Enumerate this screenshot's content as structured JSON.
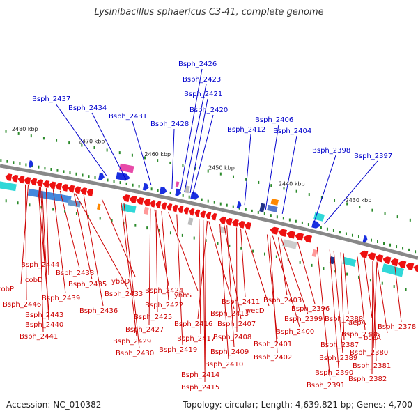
{
  "page": {
    "title": "Lysinibacillus sphaericus C3-41, complete genome",
    "accession": "Accession: NC_010382",
    "topology": "Topology: circular; Length: 4,639,821 bp; Genes: 4,700"
  },
  "colors": {
    "forward_label": "#0000cc",
    "reverse_label": "#cc0000",
    "backbone": "#888888",
    "tick_mark": "#2a8a2a",
    "forward_gene": "#1a2fe0",
    "reverse_gene": "#ee1111",
    "rna_cyan": "#30d8d8",
    "rna_magenta": "#e84aa8"
  },
  "ticks": [
    "2480 kbp",
    "2470 kbp",
    "2460 kbp",
    "2450 kbp",
    "2440 kbp",
    "2430 kbp"
  ],
  "forward_labels": [
    "Bsph_2426",
    "Bsph_2423",
    "Bsph_2421",
    "Bsph_2420",
    "Bsph_2437",
    "Bsph_2434",
    "Bsph_2431",
    "Bsph_2428",
    "Bsph_2406",
    "Bsph_2412",
    "Bsph_2404",
    "Bsph_2398",
    "Bsph_2397"
  ],
  "reverse_labels": [
    "Bsph_2444",
    "Bsph_2438",
    "cobD",
    "Bsph_2435",
    "ybbD",
    "cobP",
    "Bsph_2433",
    "Bsph_2424",
    "Bsph_2446",
    "Bsph_2439",
    "yhhS",
    "Bsph_2411",
    "Bsph_2403",
    "Bsph_2422",
    "wecD",
    "Bsph_2443",
    "Bsph_2436",
    "Bsph_2413",
    "Bsph_2396",
    "Bsph_2425",
    "Bsph_2399",
    "Bsph_2388",
    "aepA",
    "Bsph_2440",
    "Bsph_2416",
    "Bsph_2407",
    "Bsph_2378",
    "Bsph_2427",
    "Bsph_2400",
    "Bsph_2386",
    "Bsph_2441",
    "Bsph_2417",
    "Bsph_2408",
    "bceA",
    "Bsph_2429",
    "Bsph_2401",
    "Bsph_2387",
    "Bsph_2419",
    "Bsph_2409",
    "Bsph_2380",
    "Bsph_2430",
    "Bsph_2402",
    "Bsph_2389",
    "Bsph_2410",
    "Bsph_2381",
    "Bsph_2390",
    "Bsph_2414",
    "Bsph_2382",
    "Bsph_2415",
    "Bsph_2391"
  ]
}
